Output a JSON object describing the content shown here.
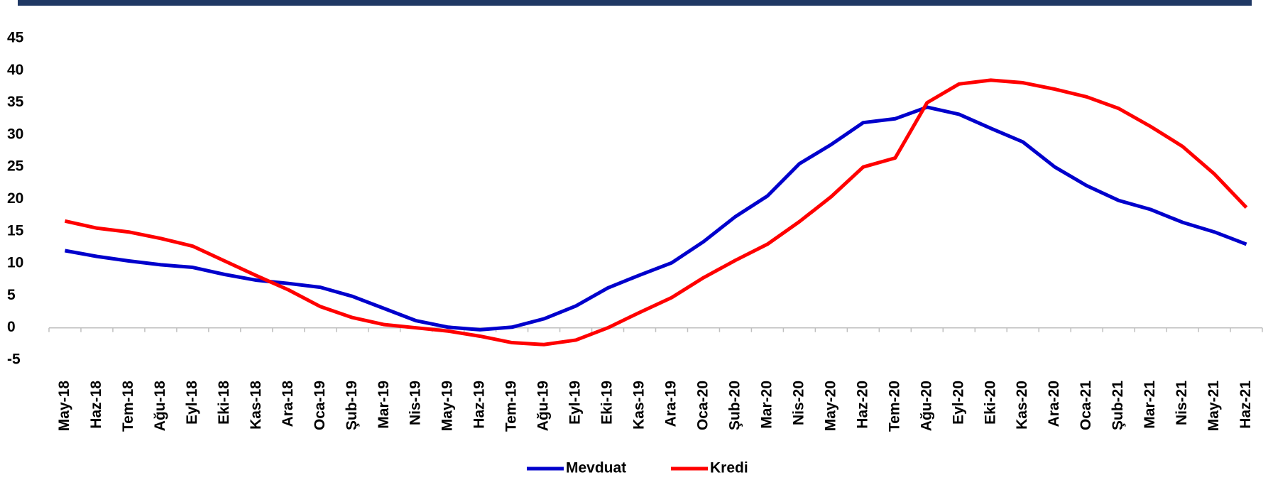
{
  "chart_data": {
    "type": "line",
    "categories": [
      "May-18",
      "Haz-18",
      "Tem-18",
      "Ağu-18",
      "Eyl-18",
      "Eki-18",
      "Kas-18",
      "Ara-18",
      "Oca-19",
      "Şub-19",
      "Mar-19",
      "Nis-19",
      "May-19",
      "Haz-19",
      "Tem-19",
      "Ağu-19",
      "Eyl-19",
      "Eki-19",
      "Kas-19",
      "Ara-19",
      "Oca-20",
      "Şub-20",
      "Mar-20",
      "Nis-20",
      "May-20",
      "Haz-20",
      "Tem-20",
      "Ağu-20",
      "Eyl-20",
      "Eki-20",
      "Kas-20",
      "Ara-20",
      "Oca-21",
      "Şub-21",
      "Mar-21",
      "Nis-21",
      "May-21",
      "Haz-21"
    ],
    "series": [
      {
        "name": "Mevduat",
        "color": "#0000cc",
        "values": [
          12,
          11.1,
          10.4,
          9.8,
          9.4,
          8.3,
          7.4,
          6.9,
          6.3,
          4.9,
          3.0,
          1.1,
          0.1,
          -0.3,
          0.1,
          1.4,
          3.4,
          6.2,
          8.2,
          10.1,
          13.4,
          17.3,
          20.5,
          25.5,
          28.5,
          31.9,
          32.5,
          34.3,
          33.2,
          31.0,
          28.9,
          25.0,
          22.1,
          19.8,
          18.4,
          16.4,
          14.9,
          13.0
        ]
      },
      {
        "name": "Kredi",
        "color": "#ff0000",
        "values": [
          16.6,
          15.5,
          14.9,
          13.9,
          12.7,
          10.4,
          8.1,
          5.9,
          3.3,
          1.6,
          0.5,
          0.0,
          -0.5,
          -1.3,
          -2.3,
          -2.6,
          -1.9,
          0.0,
          2.4,
          4.7,
          7.8,
          10.5,
          13.0,
          16.5,
          20.4,
          25.0,
          26.4,
          35.0,
          37.9,
          38.5,
          38.1,
          37.1,
          35.9,
          34.1,
          31.3,
          28.2,
          23.9,
          18.7
        ]
      }
    ],
    "ylim": [
      -5,
      45
    ],
    "yticks": [
      -5,
      0,
      5,
      10,
      15,
      20,
      25,
      30,
      35,
      40,
      45
    ],
    "grid": false,
    "legend": "bottom"
  }
}
